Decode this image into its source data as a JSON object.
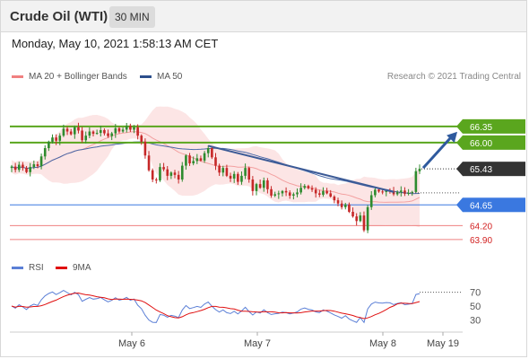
{
  "header": {
    "instrument": "Crude Oil (WTI)",
    "interval": "30 MIN",
    "timestamp": "Monday, May 10, 2021 1:58:13 AM CET"
  },
  "legend": {
    "main": [
      {
        "label": "MA 20 + Bollinger Bands",
        "color": "#f08080"
      },
      {
        "label": "MA 50",
        "color": "#2c4f8c"
      }
    ],
    "indicator": [
      {
        "label": "RSI",
        "color": "#5b7fd6"
      },
      {
        "label": "9MA",
        "color": "#e01010"
      }
    ],
    "credit": "Research © 2021 Trading Central"
  },
  "colors": {
    "candle_up": "#2e8b2e",
    "candle_down": "#c62828",
    "band_fill": "#fbdcdc",
    "ma20": "#f3a0a0",
    "ma50": "#4a69a8",
    "resistance": "#5aa61e",
    "support": "#3a78e0",
    "minor": "#ef8080",
    "trendline": "#3b5a96",
    "arrow": "#2f5a9e",
    "rsi": "#5b7fd6",
    "rsi_ma": "#e01010"
  },
  "chart_data": [
    {
      "type": "candlestick",
      "title": "Crude Oil (WTI)",
      "x_tick_labels": [
        "May 6",
        "May 7",
        "May 8",
        "May 19"
      ],
      "ylim": [
        63.8,
        66.6
      ],
      "last_price": 65.43,
      "levels": [
        {
          "value": 66.35,
          "label": "66.35",
          "kind": "resistance"
        },
        {
          "value": 66.0,
          "label": "66.00",
          "kind": "resistance"
        },
        {
          "value": 65.43,
          "label": "65.43",
          "kind": "last"
        },
        {
          "value": 64.65,
          "label": "64.65",
          "kind": "support"
        },
        {
          "value": 64.2,
          "label": "64.20",
          "kind": "minor"
        },
        {
          "value": 63.9,
          "label": "63.90",
          "kind": "minor"
        }
      ],
      "trendline": {
        "from_bar": 53,
        "from_value": 65.93,
        "to_bar": 103,
        "to_value": 64.93
      },
      "projection": {
        "from_value": 65.43,
        "to_value": 66.35
      },
      "closes": [
        65.48,
        65.41,
        65.52,
        65.45,
        65.36,
        65.47,
        65.53,
        65.49,
        65.7,
        65.88,
        66.02,
        66.11,
        66.04,
        66.15,
        66.3,
        66.24,
        66.18,
        66.33,
        66.26,
        66.05,
        66.15,
        66.24,
        66.19,
        66.21,
        66.27,
        66.2,
        66.14,
        66.2,
        66.31,
        66.24,
        66.28,
        66.36,
        66.28,
        66.33,
        66.15,
        66.02,
        65.72,
        65.4,
        65.2,
        65.18,
        65.47,
        65.42,
        65.28,
        65.35,
        65.3,
        65.2,
        65.5,
        65.72,
        65.55,
        65.6,
        65.66,
        65.61,
        65.77,
        65.88,
        65.68,
        65.5,
        65.35,
        65.45,
        65.28,
        65.22,
        65.32,
        65.15,
        65.28,
        65.45,
        65.2,
        64.95,
        65.1,
        65.02,
        65.18,
        64.99,
        64.85,
        64.88,
        64.9,
        64.95,
        64.92,
        64.85,
        64.88,
        64.92,
        65.02,
        65.06,
        65.01,
        64.98,
        64.9,
        64.87,
        64.95,
        64.9,
        64.83,
        64.75,
        64.68,
        64.6,
        64.66,
        64.5,
        64.4,
        64.3,
        64.42,
        64.1,
        64.6,
        64.86,
        64.98,
        64.94,
        64.93,
        64.96,
        64.95,
        64.88,
        64.93,
        64.96,
        64.89,
        64.91,
        64.93,
        65.38,
        65.43
      ]
    },
    {
      "type": "line",
      "title": "RSI",
      "series": [
        {
          "name": "RSI"
        },
        {
          "name": "9MA"
        }
      ],
      "y_tick_labels": [
        "70",
        "50",
        "30"
      ],
      "ylim": [
        20,
        80
      ],
      "last_value": 70
    }
  ]
}
